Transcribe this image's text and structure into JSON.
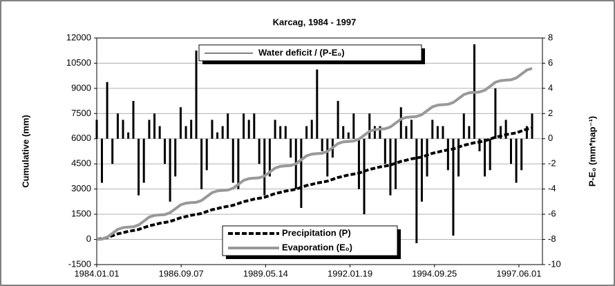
{
  "chart_data": {
    "type": "line",
    "title": "Karcag, 1984  - 1997",
    "ylabel": "Cumulative (mm)",
    "y2label": "P-E₀ (mm*nap⁻¹)",
    "ylim": [
      -1500,
      12000
    ],
    "yticks": [
      -1500,
      0,
      1500,
      3000,
      4500,
      6000,
      7500,
      9000,
      10500,
      12000
    ],
    "y2lim": [
      -10,
      8
    ],
    "y2ticks": [
      -10,
      -8,
      -6,
      -4,
      -2,
      0,
      2,
      4,
      6,
      8
    ],
    "xlim": [
      "1984.01.01",
      "1998.03.01"
    ],
    "xticks": [
      "1984.01.01",
      "1986.09.07",
      "1989.05.14",
      "1992.01.19",
      "1994.09.25",
      "1997.06.01"
    ],
    "grid": true,
    "x": [
      "1984.01.01",
      "1984.03.01",
      "1984.05.01",
      "1984.07.01",
      "1984.09.01",
      "1984.11.01",
      "1985.01.01",
      "1985.03.01",
      "1985.05.01",
      "1985.07.01",
      "1985.09.01",
      "1985.11.01",
      "1986.01.01",
      "1986.03.01",
      "1986.05.01",
      "1986.07.01",
      "1986.09.01",
      "1986.11.01",
      "1987.01.01",
      "1987.03.01",
      "1987.05.01",
      "1987.07.01",
      "1987.09.01",
      "1987.11.01",
      "1988.01.01",
      "1988.03.01",
      "1988.05.01",
      "1988.07.01",
      "1988.09.01",
      "1988.11.01",
      "1989.01.01",
      "1989.03.01",
      "1989.05.01",
      "1989.07.01",
      "1989.09.01",
      "1989.11.01",
      "1990.01.01",
      "1990.03.01",
      "1990.05.01",
      "1990.07.01",
      "1990.09.01",
      "1990.11.01",
      "1991.01.01",
      "1991.03.01",
      "1991.05.01",
      "1991.07.01",
      "1991.09.01",
      "1991.11.01",
      "1992.01.01",
      "1992.03.01",
      "1992.05.01",
      "1992.07.01",
      "1992.09.01",
      "1992.11.01",
      "1993.01.01",
      "1993.03.01",
      "1993.05.01",
      "1993.07.01",
      "1993.09.01",
      "1993.11.01",
      "1994.01.01",
      "1994.03.01",
      "1994.05.01",
      "1994.07.01",
      "1994.09.01",
      "1994.11.01",
      "1995.01.01",
      "1995.03.01",
      "1995.05.01",
      "1995.07.01",
      "1995.09.01",
      "1995.11.01",
      "1996.01.01",
      "1996.03.01",
      "1996.05.01",
      "1996.07.01",
      "1996.09.01",
      "1996.11.01",
      "1997.01.01",
      "1997.03.01",
      "1997.05.01",
      "1997.07.01",
      "1997.09.01",
      "1997.11.01"
    ],
    "series": [
      {
        "name": "Water deficit / (P-E₀)",
        "type": "bar",
        "axis": "y2",
        "color": "#000000",
        "values": [
          1.5,
          -3.5,
          4.5,
          -2,
          2,
          1.5,
          0.5,
          3,
          -4.5,
          -3.5,
          1.5,
          2,
          1,
          -2,
          -5,
          -3,
          2.5,
          1,
          1.5,
          7,
          -4,
          -2.5,
          1.5,
          0.5,
          1,
          2,
          -3.5,
          -4,
          2,
          1.5,
          2,
          -2,
          -4.5,
          -3,
          1.5,
          1,
          1,
          -1.5,
          -4,
          -5.5,
          1,
          1.5,
          5.5,
          -1,
          -3,
          -1.5,
          3,
          1,
          0.5,
          2,
          -4,
          -6,
          2,
          1,
          1,
          -2,
          -4.5,
          -4,
          2.5,
          1,
          1.5,
          -8.3,
          -5,
          -3,
          1.5,
          1,
          1,
          -2.5,
          -7.7,
          -3,
          2,
          1,
          7.5,
          -1,
          -3,
          -2.5,
          4,
          1,
          1.5,
          -2,
          -3.5,
          -2.5,
          1,
          2
        ]
      },
      {
        "name": "Precipitation (P)",
        "type": "line",
        "color": "#000000",
        "dash": true,
        "values": [
          0,
          50,
          110,
          220,
          330,
          400,
          480,
          530,
          590,
          700,
          810,
          880,
          960,
          1010,
          1070,
          1180,
          1290,
          1360,
          1440,
          1490,
          1550,
          1660,
          1770,
          1840,
          1920,
          1970,
          2030,
          2140,
          2250,
          2320,
          2400,
          2450,
          2510,
          2620,
          2730,
          2800,
          2880,
          2930,
          2990,
          3100,
          3210,
          3280,
          3360,
          3410,
          3470,
          3580,
          3690,
          3760,
          3840,
          3890,
          3950,
          4060,
          4170,
          4240,
          4320,
          4370,
          4430,
          4540,
          4650,
          4720,
          4800,
          4850,
          4910,
          5020,
          5130,
          5200,
          5280,
          5330,
          5390,
          5500,
          5610,
          5680,
          5760,
          5810,
          5870,
          5980,
          6090,
          6160,
          6240,
          6290,
          6350,
          6460,
          6570,
          6640
        ]
      },
      {
        "name": "Evaporation (E₀)",
        "type": "line",
        "color": "#999999",
        "dash": false,
        "values": [
          0,
          20,
          130,
          360,
          600,
          700,
          730,
          750,
          860,
          1090,
          1330,
          1430,
          1460,
          1480,
          1590,
          1820,
          2060,
          2160,
          2190,
          2210,
          2320,
          2550,
          2790,
          2890,
          2920,
          2940,
          3050,
          3280,
          3520,
          3620,
          3650,
          3670,
          3780,
          4010,
          4250,
          4350,
          4380,
          4400,
          4510,
          4740,
          4980,
          5080,
          5110,
          5130,
          5240,
          5470,
          5710,
          5810,
          5840,
          5860,
          5970,
          6200,
          6440,
          6540,
          6570,
          6590,
          6700,
          6930,
          7170,
          7270,
          7300,
          7320,
          7430,
          7660,
          7900,
          8000,
          8030,
          8050,
          8160,
          8390,
          8630,
          8730,
          8760,
          8780,
          8890,
          9120,
          9360,
          9460,
          9490,
          9510,
          9620,
          9850,
          10090,
          10190
        ]
      }
    ]
  }
}
